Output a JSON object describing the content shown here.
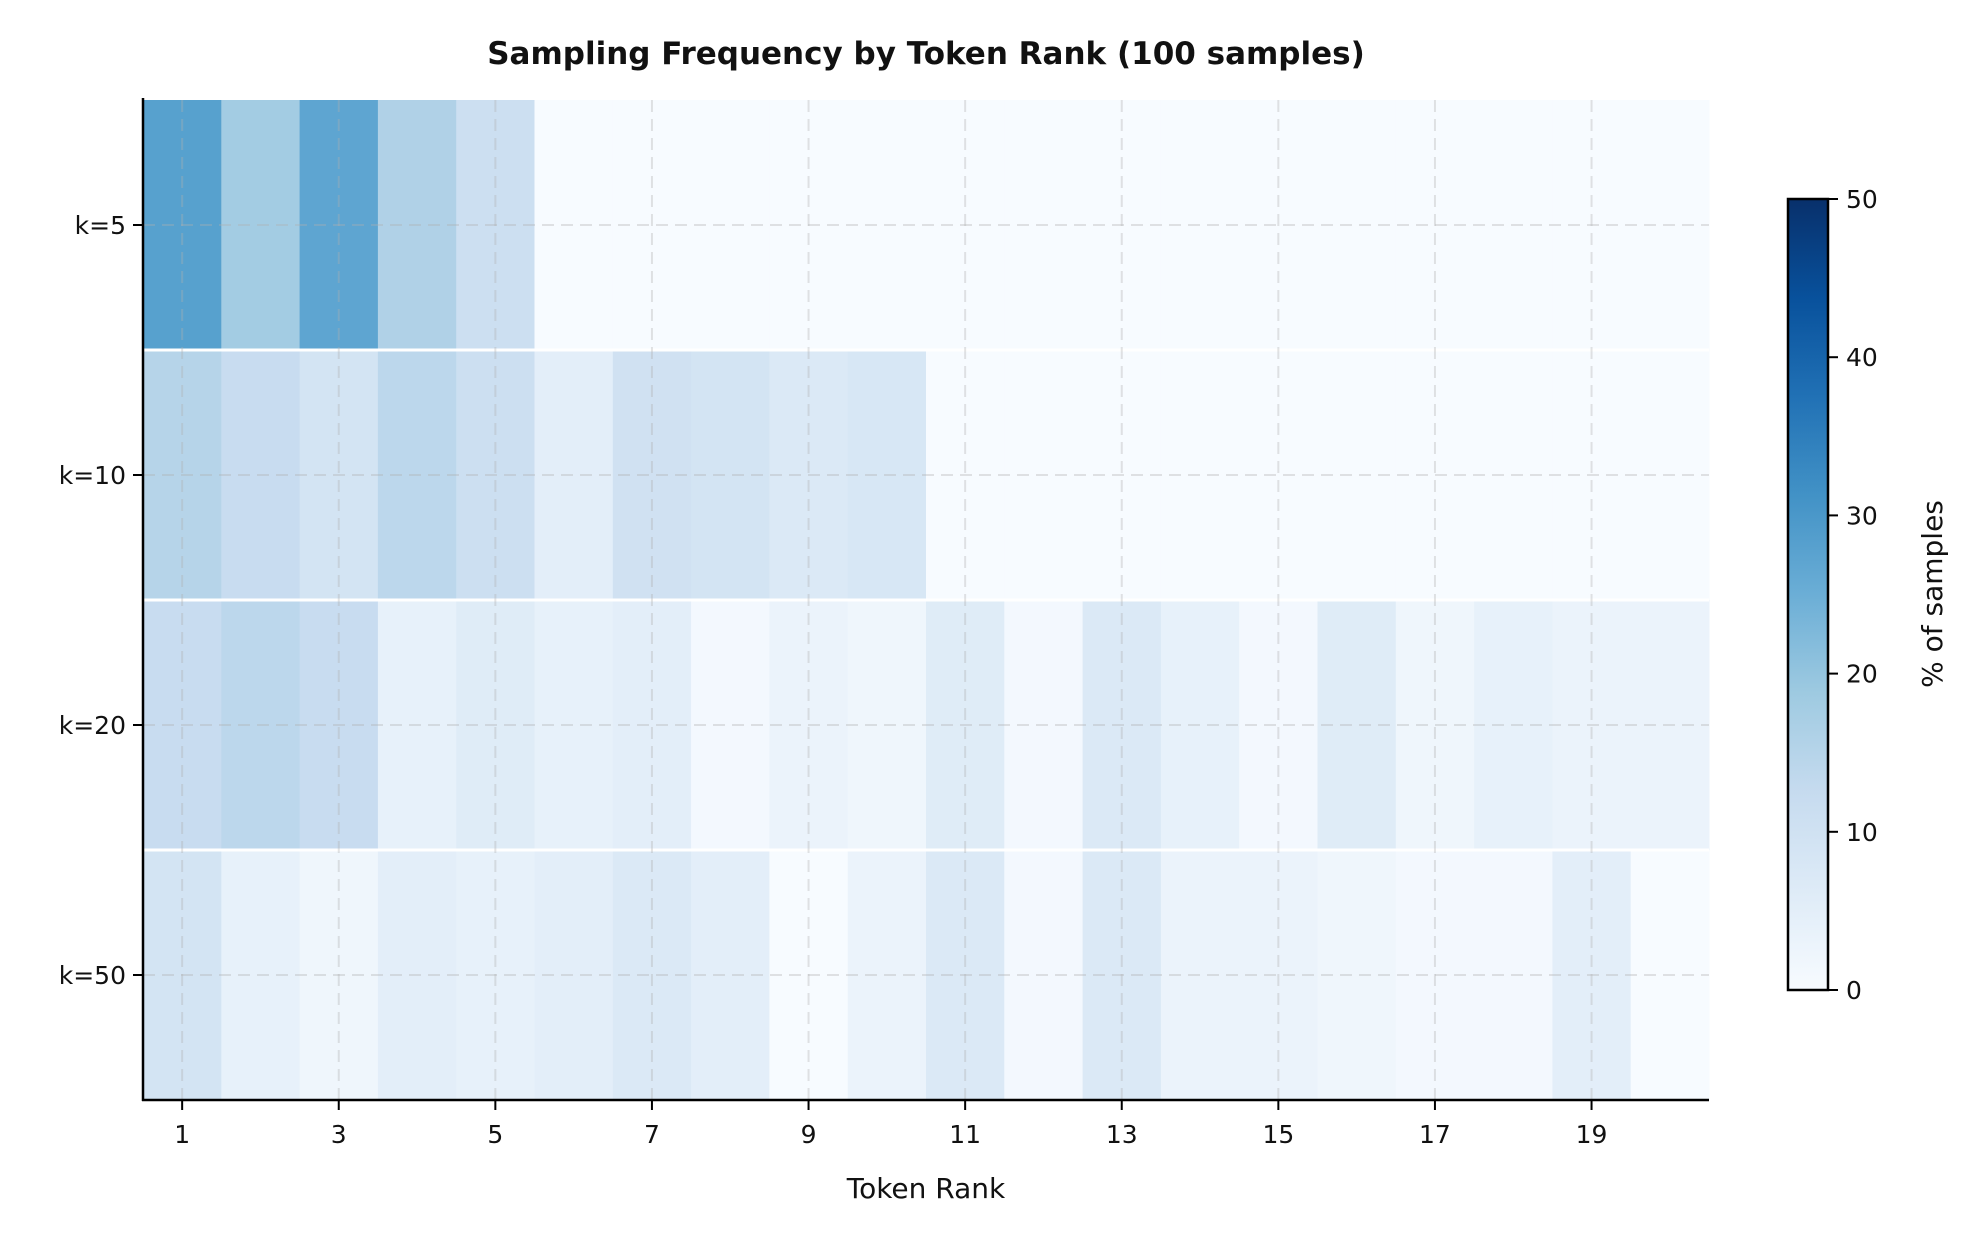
{
  "chart_data": {
    "type": "heatmap",
    "title": "Sampling Frequency by Token Rank (100 samples)",
    "xlabel": "Token Rank",
    "ylabel": "",
    "x": [
      1,
      2,
      3,
      4,
      5,
      6,
      7,
      8,
      9,
      10,
      11,
      12,
      13,
      14,
      15,
      16,
      17,
      18,
      19,
      20
    ],
    "x_tick_labels": [
      "1",
      "3",
      "5",
      "7",
      "9",
      "11",
      "13",
      "15",
      "17",
      "19"
    ],
    "x_ticks": [
      1,
      3,
      5,
      7,
      9,
      11,
      13,
      15,
      17,
      19
    ],
    "y_labels": [
      "k=5",
      "k=10",
      "k=20",
      "k=50"
    ],
    "values": [
      [
        28,
        18,
        27,
        16,
        11,
        0,
        0,
        0,
        0,
        0,
        0,
        0,
        0,
        0,
        0,
        0,
        0,
        0,
        0,
        0
      ],
      [
        15,
        12,
        9,
        14,
        11,
        5,
        10,
        9,
        7,
        8,
        0,
        0,
        0,
        0,
        0,
        0,
        0,
        0,
        0,
        0
      ],
      [
        12,
        14,
        12,
        4,
        6,
        4,
        5,
        1,
        3,
        2,
        6,
        1,
        7,
        4,
        1,
        6,
        2,
        4,
        3,
        3
      ],
      [
        9,
        4,
        2,
        5,
        4,
        5,
        7,
        5,
        0,
        3,
        7,
        1,
        7,
        3,
        3,
        2,
        1,
        1,
        5,
        0
      ]
    ],
    "colormap": "Blues",
    "colorbar": {
      "label": "% of samples",
      "range": [
        0,
        50
      ],
      "ticks": [
        "0",
        "10",
        "20",
        "30",
        "40",
        "50"
      ]
    },
    "grid": true
  }
}
